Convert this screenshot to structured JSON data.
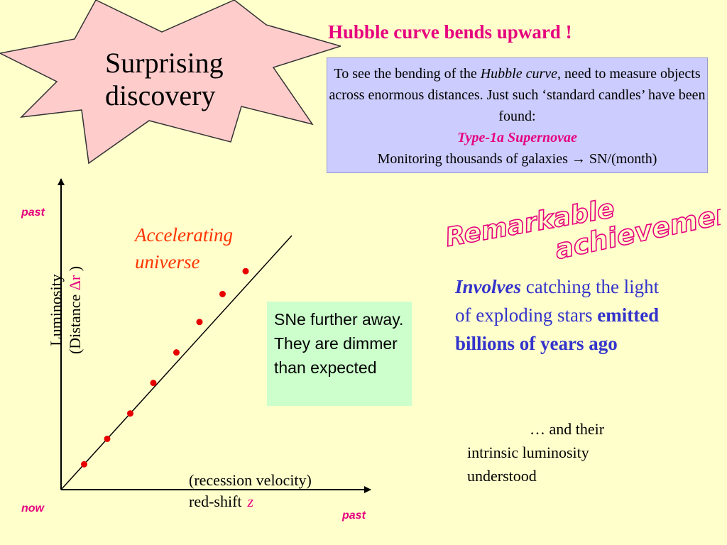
{
  "burst": {
    "line1": "Surprising",
    "line2": "discovery",
    "fill": "#ffcccc"
  },
  "title": "Hubble curve bends upward !",
  "info": {
    "pre": "To see the bending of the ",
    "em": "Hubble curve",
    "post": ", need to measure objects across enormous distances. Just such ‘standard candles’ have been found:",
    "supernovae": "Type-1a Supernovae",
    "monitoring": "Monitoring thousands of galaxies → SN/(month)"
  },
  "chart_labels": {
    "past_y": "past",
    "now": "now",
    "past_x": "past",
    "accel_line1": "Accelerating",
    "accel_line2": "universe",
    "y_line1": "Luminosity",
    "y_line2_pre": "(Distance ",
    "y_delta_r": "Δr",
    "y_line2_post": " )",
    "x_line1": "(recession velocity)",
    "x_line2": "red-shift",
    "x_symbol": "z"
  },
  "sne_note": "SNe further away. They are dimmer than expected",
  "remarkable": {
    "word1": "Remarkable",
    "word2": "achievement",
    "color": "#e6007e"
  },
  "involves": {
    "em": "Involves",
    "mid": " catching the light of exploding stars ",
    "bold": "emitted billions of years ago"
  },
  "intrinsic": {
    "line1": "… and their",
    "rest": "intrinsic luminosity understood"
  },
  "chart_data": {
    "type": "scatter",
    "x": [
      1,
      2,
      3,
      4,
      5,
      6,
      7,
      8
    ],
    "y": [
      1,
      2,
      3,
      4.2,
      5.4,
      6.6,
      7.7,
      8.6
    ],
    "reference_line": {
      "x": [
        0,
        10
      ],
      "y": [
        0,
        10
      ]
    },
    "xlim": [
      0,
      11
    ],
    "ylim": [
      0,
      11
    ],
    "grid": false,
    "point_color": "#e60000"
  }
}
